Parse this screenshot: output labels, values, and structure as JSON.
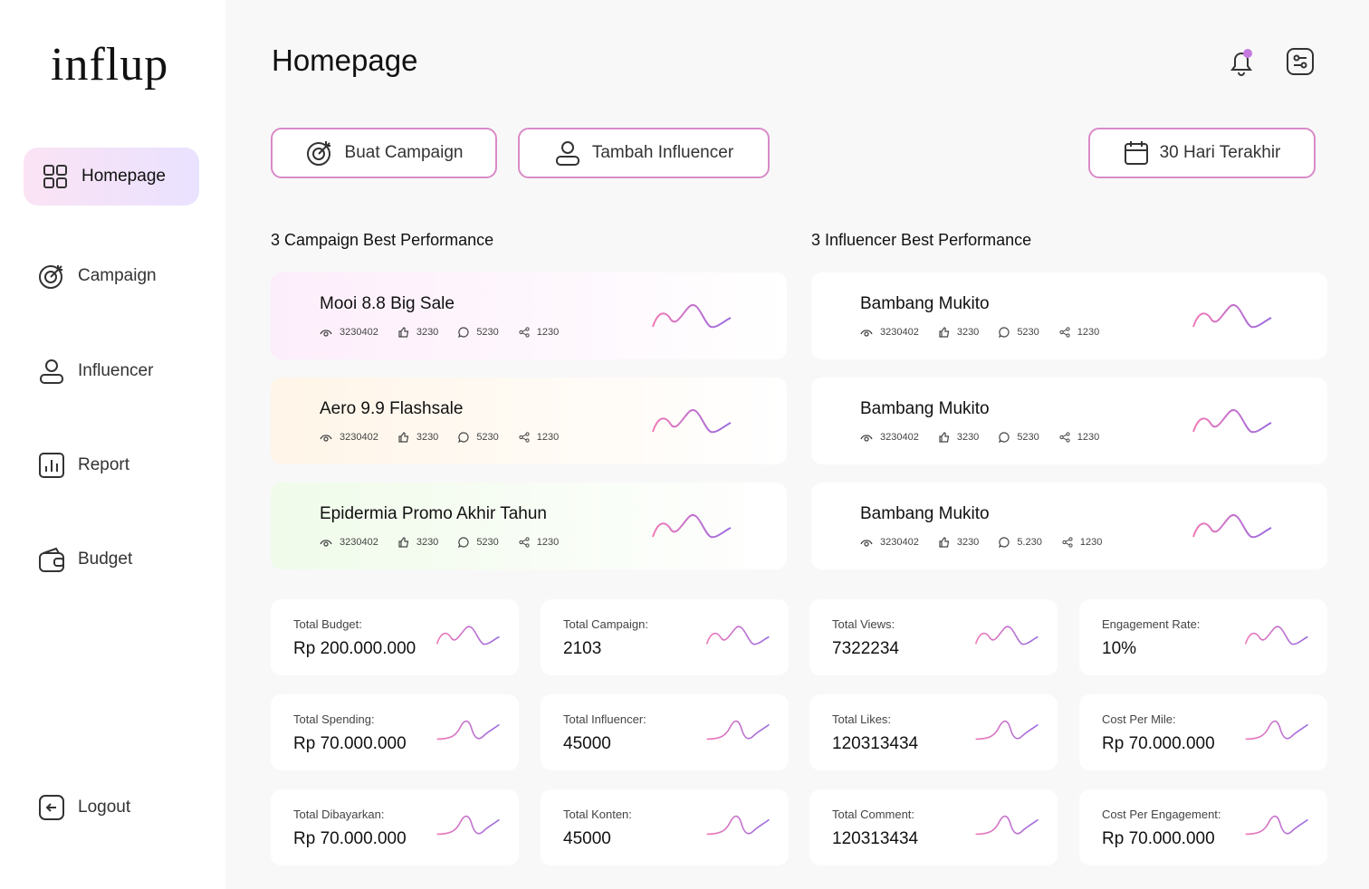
{
  "sidebar": {
    "logo": "influp",
    "menu": [
      {
        "label": "Homepage",
        "active": true
      },
      {
        "label": "Campaign",
        "active": false
      },
      {
        "label": "Influencer",
        "active": false
      },
      {
        "label": "Report",
        "active": false
      },
      {
        "label": "Budget",
        "active": false
      }
    ],
    "logout": "Logout"
  },
  "header": {
    "title": "Homepage"
  },
  "actions": [
    "Buat Campaign",
    "Tambah Influencer"
  ],
  "date_filter": "30 Hari Terakhir",
  "campaigns": {
    "title": "3 Campaign Best Performance",
    "items": [
      {
        "name": "Mooi 8.8 Big Sale",
        "views": "3230402",
        "likes": "3230",
        "comments": "5230",
        "shares": "1230"
      },
      {
        "name": "Aero 9.9 Flashsale",
        "views": "3230402",
        "likes": "3230",
        "comments": "5230",
        "shares": "1230"
      },
      {
        "name": "Epidermia Promo Akhir Tahun",
        "views": "3230402",
        "likes": "3230",
        "comments": "5230",
        "shares": "1230"
      }
    ]
  },
  "influencers": {
    "title": "3 Influencer Best Performance",
    "items": [
      {
        "name": "Bambang Mukito",
        "views": "3230402",
        "likes": "3230",
        "comments": "5230",
        "shares": "1230"
      },
      {
        "name": "Bambang Mukito",
        "views": "3230402",
        "likes": "3230",
        "comments": "5230",
        "shares": "1230"
      },
      {
        "name": "Bambang Mukito",
        "views": "3230402",
        "likes": "3230",
        "comments": "5.230",
        "shares": "1230"
      }
    ]
  },
  "stats": [
    [
      {
        "label": "Total Budget:",
        "value": "Rp 200.000.000"
      },
      {
        "label": "Total Campaign:",
        "value": "2103"
      },
      {
        "label": "Total Views:",
        "value": "7322234"
      },
      {
        "label": "Engagement Rate:",
        "value": "10%"
      }
    ],
    [
      {
        "label": "Total Spending:",
        "value": "Rp 70.000.000"
      },
      {
        "label": "Total Influencer:",
        "value": "45000"
      },
      {
        "label": "Total Likes:",
        "value": "120313434"
      },
      {
        "label": "Cost Per Mile:",
        "value": "Rp 70.000.000"
      }
    ],
    [
      {
        "label": "Total Dibayarkan:",
        "value": "Rp 70.000.000"
      },
      {
        "label": "Total Konten:",
        "value": "45000"
      },
      {
        "label": "Total Comment:",
        "value": "120313434"
      },
      {
        "label": "Cost Per Engagement:",
        "value": "Rp 70.000.000"
      }
    ]
  ]
}
